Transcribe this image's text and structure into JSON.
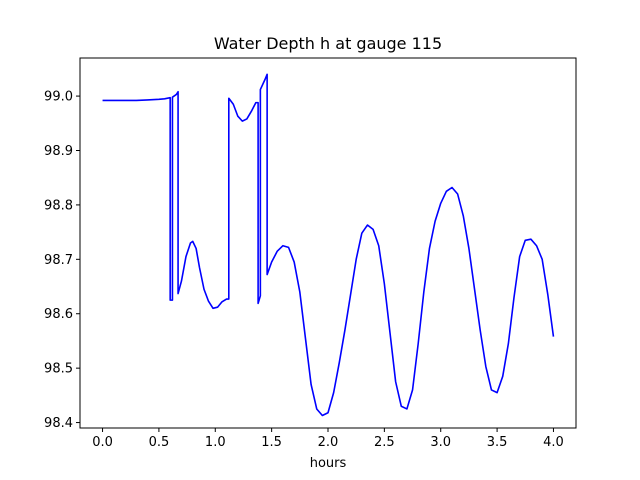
{
  "chart_data": {
    "type": "line",
    "title": "Water Depth h at gauge 115",
    "xlabel": "hours",
    "ylabel": "",
    "xlim": [
      -0.2,
      4.2
    ],
    "ylim": [
      98.39,
      99.07
    ],
    "xticks": [
      "0.0",
      "0.5",
      "1.0",
      "1.5",
      "2.0",
      "2.5",
      "3.0",
      "3.5",
      "4.0"
    ],
    "yticks": [
      "98.4",
      "98.5",
      "98.6",
      "98.7",
      "98.8",
      "98.9",
      "99.0"
    ],
    "grid": false,
    "legend": "none",
    "line_color": "#0000ff",
    "series": [
      {
        "x": [
          0.0,
          0.1,
          0.2,
          0.3,
          0.4,
          0.5,
          0.55,
          0.6,
          0.6,
          0.62,
          0.62,
          0.655,
          0.67,
          0.67,
          0.7,
          0.74,
          0.78,
          0.8,
          0.83,
          0.86,
          0.9,
          0.94,
          0.98,
          1.02,
          1.06,
          1.1,
          1.12,
          1.12,
          1.16,
          1.2,
          1.24,
          1.28,
          1.32,
          1.36,
          1.38,
          1.38,
          1.4,
          1.4,
          1.44,
          1.46,
          1.46,
          1.5,
          1.55,
          1.6,
          1.65,
          1.7,
          1.75,
          1.8,
          1.85,
          1.9,
          1.95,
          2.0,
          2.05,
          2.1,
          2.15,
          2.2,
          2.25,
          2.3,
          2.35,
          2.4,
          2.45,
          2.5,
          2.55,
          2.6,
          2.65,
          2.7,
          2.75,
          2.8,
          2.85,
          2.9,
          2.95,
          3.0,
          3.05,
          3.1,
          3.15,
          3.2,
          3.25,
          3.3,
          3.35,
          3.4,
          3.45,
          3.5,
          3.55,
          3.6,
          3.65,
          3.7,
          3.75,
          3.8,
          3.85,
          3.9,
          3.95,
          4.0
        ],
        "y": [
          98.992,
          98.992,
          98.992,
          98.992,
          98.993,
          98.994,
          98.995,
          98.997,
          98.625,
          98.625,
          98.998,
          99.003,
          99.008,
          98.637,
          98.66,
          98.705,
          98.73,
          98.733,
          98.72,
          98.685,
          98.645,
          98.623,
          98.61,
          98.612,
          98.622,
          98.627,
          98.627,
          98.996,
          98.985,
          98.963,
          98.954,
          98.958,
          98.972,
          98.988,
          98.988,
          98.619,
          98.633,
          99.012,
          99.03,
          99.04,
          98.672,
          98.695,
          98.715,
          98.725,
          98.722,
          98.695,
          98.64,
          98.555,
          98.47,
          98.425,
          98.413,
          98.418,
          98.455,
          98.51,
          98.57,
          98.635,
          98.7,
          98.748,
          98.763,
          98.755,
          98.725,
          98.655,
          98.565,
          98.475,
          98.43,
          98.425,
          98.46,
          98.545,
          98.64,
          98.72,
          98.77,
          98.803,
          98.825,
          98.832,
          98.82,
          98.78,
          98.72,
          98.645,
          98.57,
          98.503,
          98.46,
          98.455,
          98.485,
          98.545,
          98.63,
          98.705,
          98.735,
          98.737,
          98.725,
          98.7,
          98.635,
          98.558
        ]
      }
    ]
  }
}
